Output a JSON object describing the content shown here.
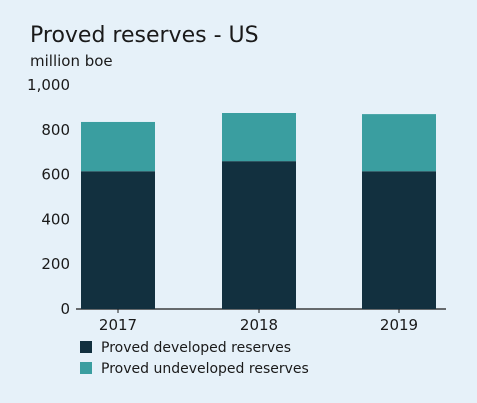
{
  "chart_data": {
    "type": "bar",
    "stacked": true,
    "title": "Proved reserves - US",
    "subtitle": "million boe",
    "categories": [
      "2017",
      "2018",
      "2019"
    ],
    "series": [
      {
        "name": "Proved developed reserves",
        "values": [
          615,
          660,
          615
        ],
        "color": "#12303f"
      },
      {
        "name": "Proved undeveloped reserves",
        "values": [
          220,
          215,
          255
        ],
        "color": "#3a9ea0"
      }
    ],
    "ylim": [
      0,
      1000
    ],
    "y_ticks": [
      0,
      200,
      400,
      600,
      800,
      1000
    ],
    "y_tick_labels": [
      "0",
      "200",
      "400",
      "600",
      "800",
      "1,000"
    ],
    "grid": false,
    "legend_position": "bottom-left"
  }
}
